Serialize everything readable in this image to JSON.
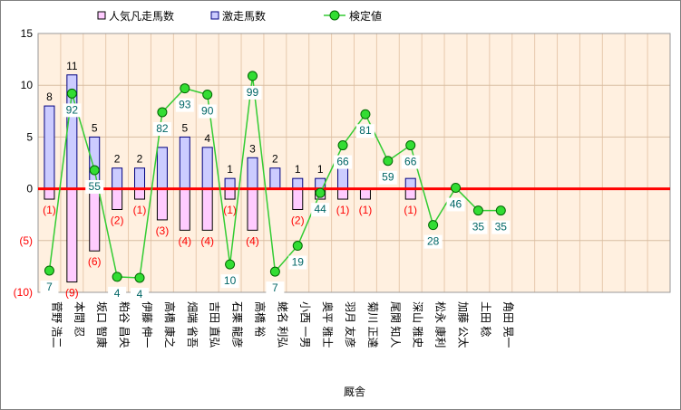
{
  "chart_data": {
    "type": "bar",
    "xlabel": "厩舎",
    "ylim": [
      -10,
      15
    ],
    "y_ticks": [
      {
        "value": 15,
        "label": "15"
      },
      {
        "value": 10,
        "label": "10"
      },
      {
        "value": 5,
        "label": "5"
      },
      {
        "value": 0,
        "label": "0"
      },
      {
        "value": -5,
        "label": "(5)"
      },
      {
        "value": -10,
        "label": "(10)"
      }
    ],
    "categories": [
      "菅野 浩二",
      "本間 忍",
      "坂口 智康",
      "粕谷 昌央",
      "伊藤 伸一",
      "高橋 康之",
      "畑端 省吾",
      "吉田 直弘",
      "石栗 龍彦",
      "高橋 裕",
      "蛯名 利弘",
      "小西 一男",
      "奥平 雅士",
      "羽月 友彦",
      "菊川 正達",
      "尾関 知人",
      "深山 雅史",
      "松永 康利",
      "加藤 公太",
      "土田 稔",
      "角田 晃一"
    ],
    "series": [
      {
        "name": "人気凡走馬数",
        "color": "#ffccff",
        "values": [
          -1,
          -9,
          -6,
          -2,
          -1,
          -3,
          -4,
          -4,
          -1,
          -4,
          0,
          -2,
          -1,
          -1,
          -1,
          0,
          -1,
          0,
          0,
          0,
          0
        ],
        "labels": [
          "(1)",
          "(9)",
          "(6)",
          "(2)",
          "(1)",
          "(3)",
          "(4)",
          "(4)",
          "(1)",
          "(4)",
          "",
          "(2)",
          "",
          "(1)",
          "(1)",
          "",
          "(1)",
          "",
          "",
          "",
          ""
        ]
      },
      {
        "name": "激走馬数",
        "color": "#ccccff",
        "values": [
          8,
          11,
          5,
          2,
          2,
          4,
          5,
          4,
          1,
          3,
          2,
          1,
          1,
          2,
          0,
          0,
          1,
          0,
          0,
          0,
          0
        ],
        "labels": [
          "8",
          "11",
          "5",
          "2",
          "2",
          "",
          "5",
          "4",
          "1",
          "3",
          "2",
          "1",
          "1",
          "",
          "",
          "",
          "",
          "",
          "",
          "",
          ""
        ]
      },
      {
        "name": "検定値",
        "color": "#33cc33",
        "values": [
          -7.9,
          9.2,
          1.8,
          -8.5,
          -8.6,
          7.4,
          9.7,
          9.1,
          -7.3,
          10.9,
          -8.0,
          -5.5,
          -0.4,
          4.2,
          7.2,
          2.7,
          4.2,
          -3.5,
          0.1,
          -2.1,
          -2.1
        ],
        "labels": [
          "7",
          "92",
          "55",
          "4",
          "4",
          "82",
          "93",
          "90",
          "10",
          "99",
          "7",
          "19",
          "44",
          "66",
          "81",
          "59",
          "66",
          "28",
          "46",
          "35",
          "35"
        ]
      }
    ],
    "grid": true,
    "zero_line_color": "#ff0000",
    "plot_background": "#fff0e0",
    "legend_position": "top"
  }
}
